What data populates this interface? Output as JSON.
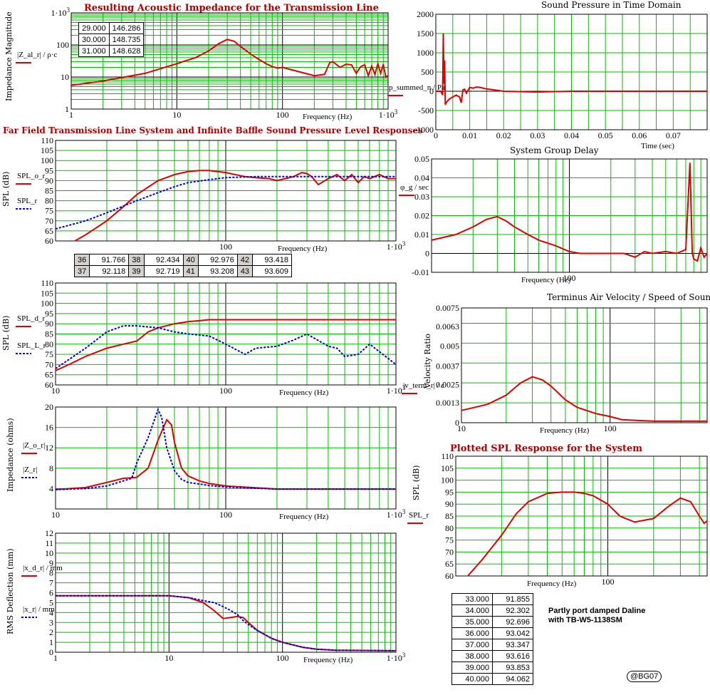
{
  "colors": {
    "grid": "#00c000",
    "red": "#e00000",
    "blue": "#0000e0",
    "title": "#b00000",
    "table_bg": "#d6d3ce"
  },
  "chart_data": [
    {
      "id": "impedance",
      "type": "line",
      "xscale": "log",
      "yscale": "log",
      "title": "Resulting Acoustic Impedance for the Transmission Line",
      "xlabel": "Frequency (Hz)",
      "ylabel": "Impedance Magnitude",
      "xlim": [
        1,
        1000
      ],
      "ylim": [
        1,
        1000
      ],
      "xticks": [
        "1",
        "10",
        "100",
        "1·10³"
      ],
      "yticks": [
        "1",
        "10",
        "100",
        "1·10³"
      ],
      "legend": [
        "|Z_al_r| / ρ·c"
      ],
      "series": [
        {
          "color": "red",
          "x": [
            1,
            2,
            5,
            10,
            15,
            20,
            25,
            30,
            35,
            40,
            50,
            60,
            70,
            80,
            90,
            100,
            120,
            150,
            200,
            250,
            280,
            300,
            350,
            400,
            450,
            500,
            550,
            600,
            650,
            700,
            750,
            800,
            850,
            900,
            950,
            1000
          ],
          "y": [
            5.5,
            7.5,
            13,
            26,
            40,
            65,
            110,
            148,
            130,
            90,
            52,
            35,
            26,
            21,
            19,
            20,
            17,
            14,
            11,
            12,
            28,
            30,
            20,
            25,
            24,
            13,
            21,
            24,
            11,
            22,
            12,
            26,
            13,
            25,
            10,
            11
          ]
        }
      ]
    },
    {
      "id": "time",
      "type": "line",
      "title": "Sound Pressure in Time Domain",
      "xlabel": "Time (sec)",
      "ylabel": "p_summed_n / Pa",
      "xlim": [
        0,
        0.08
      ],
      "ylim": [
        -1000,
        2000
      ],
      "xticks": [
        "0",
        "0.01",
        "0.02",
        "0.03",
        "0.04",
        "0.05",
        "0.06",
        "0.07"
      ],
      "yticks": [
        "-1000",
        "-500",
        "0",
        "500",
        "1000",
        "1500",
        "2000"
      ],
      "series": [
        {
          "color": "red",
          "x": [
            0,
            0.0015,
            0.002,
            0.0022,
            0.0024,
            0.0026,
            0.0028,
            0.003,
            0.0035,
            0.004,
            0.005,
            0.006,
            0.007,
            0.0075,
            0.008,
            0.0085,
            0.009,
            0.01,
            0.011,
            0.012,
            0.013,
            0.015,
            0.02,
            0.03,
            0.04,
            0.06,
            0.08
          ],
          "y": [
            0,
            0,
            -100,
            1500,
            200,
            800,
            -350,
            -300,
            -250,
            -200,
            -150,
            -100,
            -150,
            -300,
            40,
            50,
            -50,
            100,
            80,
            110,
            100,
            60,
            0,
            -20,
            0,
            0,
            0
          ]
        }
      ]
    },
    {
      "id": "farfield",
      "type": "line",
      "xscale": "log",
      "title": "Far Field Transmission Line System and Infinite Baffle Sound Pressure Level Responses",
      "xlabel": "Frequency (Hz)",
      "ylabel": "SPL (dB)",
      "xlim": [
        10,
        1000
      ],
      "ylim": [
        60,
        110
      ],
      "xticks": [
        "100",
        "1·10³"
      ],
      "yticks": [
        "60",
        "65",
        "70",
        "75",
        "80",
        "85",
        "90",
        "95",
        "100",
        "105",
        "110"
      ],
      "legend": [
        "SPL_o_r",
        "SPL_r"
      ],
      "series": [
        {
          "color": "red",
          "dash": false,
          "x": [
            13,
            15,
            20,
            25,
            30,
            40,
            50,
            60,
            70,
            80,
            100,
            130,
            150,
            180,
            200,
            250,
            280,
            300,
            320,
            350,
            400,
            450,
            500,
            550,
            600,
            650,
            700,
            800,
            900,
            1000
          ],
          "y": [
            60,
            63,
            70,
            77,
            83,
            90,
            93,
            94.5,
            95,
            95,
            94,
            92,
            91.5,
            91,
            90,
            92,
            94,
            93.5,
            92,
            88,
            91,
            93,
            90,
            93,
            89,
            92,
            91,
            93,
            91,
            91
          ]
        },
        {
          "color": "blue",
          "dash": true,
          "x": [
            10,
            15,
            20,
            30,
            40,
            50,
            60,
            80,
            100,
            150,
            200,
            300,
            500,
            700,
            1000
          ],
          "y": [
            66,
            70,
            74,
            80,
            84,
            87,
            89,
            90.5,
            91.5,
            92,
            92,
            92,
            92,
            92,
            92
          ]
        }
      ]
    },
    {
      "id": "groupdelay",
      "type": "line",
      "xscale": "log",
      "title": "System Group Delay",
      "xlabel": "Frequency (Hz)",
      "ylabel": "φ_g / sec",
      "xlim": [
        10,
        1000
      ],
      "ylim": [
        -0.01,
        0.05
      ],
      "xticks": [
        "100"
      ],
      "yticks": [
        "-0.01",
        "0",
        "0.01",
        "0.02",
        "0.03",
        "0.04",
        "0.05"
      ],
      "series": [
        {
          "color": "red",
          "x": [
            10,
            15,
            20,
            25,
            30,
            35,
            40,
            50,
            60,
            80,
            100,
            120,
            150,
            200,
            250,
            300,
            350,
            400,
            500,
            600,
            700,
            750,
            780,
            800,
            850,
            900,
            950,
            1000
          ],
          "y": [
            0.007,
            0.01,
            0.014,
            0.018,
            0.0195,
            0.017,
            0.014,
            0.01,
            0.007,
            0.004,
            0.001,
            0.0,
            0.0,
            0.0,
            0.0,
            -0.002,
            0.001,
            0.0,
            0.001,
            0.0,
            0.002,
            0.048,
            0.0,
            -0.003,
            -0.004,
            0.003,
            -0.002,
            0.0
          ]
        }
      ]
    },
    {
      "id": "drivers",
      "type": "line",
      "xscale": "log",
      "xlabel": "Frequency (Hz)",
      "ylabel": "SPL (dB)",
      "xlim": [
        10,
        1000
      ],
      "ylim": [
        60,
        110
      ],
      "xticks": [
        "10",
        "100",
        "1·10³"
      ],
      "yticks": [
        "60",
        "65",
        "70",
        "75",
        "80",
        "85",
        "90",
        "95",
        "100",
        "105",
        "110"
      ],
      "legend": [
        "SPL_d_r",
        "SPL_L_r"
      ],
      "series": [
        {
          "color": "red",
          "dash": false,
          "x": [
            10,
            12,
            15,
            20,
            25,
            30,
            35,
            40,
            50,
            60,
            70,
            80,
            100,
            200,
            500,
            1000
          ],
          "y": [
            67,
            70,
            74,
            78,
            80,
            81.5,
            86,
            88,
            90,
            91,
            91.5,
            92,
            92,
            92,
            92,
            92
          ]
        },
        {
          "color": "blue",
          "dash": true,
          "x": [
            10,
            15,
            20,
            25,
            30,
            40,
            50,
            60,
            80,
            100,
            130,
            150,
            200,
            250,
            300,
            400,
            450,
            500,
            600,
            700,
            900,
            1000
          ],
          "y": [
            68,
            78,
            86,
            89,
            89,
            88,
            86,
            85,
            84,
            80,
            75,
            78,
            79,
            82,
            85,
            79,
            78,
            74,
            75,
            80,
            73,
            70
          ]
        }
      ]
    },
    {
      "id": "velocity",
      "type": "line",
      "xscale": "log",
      "title": "Terminus Air Velocity / Speed of Sound",
      "xlabel": "Frequency (Hz)",
      "ylabel": "Velocity Ratio",
      "xlim": [
        10,
        450
      ],
      "ylim": [
        0,
        0.0075
      ],
      "xticks": [
        "10",
        "100"
      ],
      "yticks": [
        "0",
        "0.0013",
        "0.0025",
        "0.0037",
        "0.005",
        "0.0063",
        "0.0075"
      ],
      "legend": [
        "|v_term_r| / c"
      ],
      "series": [
        {
          "color": "red",
          "x": [
            10,
            15,
            20,
            25,
            30,
            35,
            40,
            50,
            60,
            80,
            100,
            120,
            150,
            200,
            300,
            450
          ],
          "y": [
            0.0008,
            0.0012,
            0.0018,
            0.0026,
            0.003,
            0.0028,
            0.0024,
            0.0015,
            0.001,
            0.0006,
            0.0004,
            0.0002,
            0.00015,
            0.0001,
            0.0001,
            0.0001
          ]
        }
      ]
    },
    {
      "id": "elecimp",
      "type": "line",
      "xscale": "log",
      "xlabel": "Frequency (Hz)",
      "ylabel": "Impedance (ohms)",
      "xlim": [
        10,
        1000
      ],
      "ylim": [
        0,
        20
      ],
      "xticks": [
        "10",
        "100",
        "1·10³"
      ],
      "yticks": [
        "4",
        "8",
        "12",
        "16",
        "20"
      ],
      "legend": [
        "|Z_o_r|",
        "|Z_r|"
      ],
      "series": [
        {
          "color": "red",
          "dash": false,
          "x": [
            10,
            15,
            20,
            25,
            30,
            35,
            40,
            45,
            48,
            50,
            55,
            60,
            70,
            80,
            100,
            200,
            500,
            1000
          ],
          "y": [
            3.8,
            4.2,
            5.2,
            6,
            6.2,
            8,
            13.5,
            17.5,
            16.5,
            13,
            8,
            6.5,
            5.5,
            5,
            4.5,
            3.9,
            3.9,
            3.9
          ]
        },
        {
          "color": "blue",
          "dash": true,
          "x": [
            10,
            15,
            20,
            25,
            28,
            30,
            35,
            40,
            42,
            45,
            50,
            55,
            60,
            70,
            80,
            100,
            200,
            500,
            1000
          ],
          "y": [
            3.8,
            4,
            4.5,
            5.5,
            6,
            9,
            14,
            19.5,
            18,
            12,
            7.5,
            5.8,
            5.2,
            4.9,
            4.6,
            4.3,
            3.9,
            3.9,
            3.9
          ]
        }
      ]
    },
    {
      "id": "plotted",
      "type": "line",
      "xscale": "log",
      "title": "Plotted SPL Response for the System",
      "xlabel": "Frequency (Hz)",
      "ylabel": "SPL (dB)",
      "xlim": [
        10,
        450
      ],
      "ylim": [
        60,
        110
      ],
      "xticks": [
        "100"
      ],
      "yticks": [
        "60",
        "65",
        "70",
        "75",
        "80",
        "85",
        "90",
        "95",
        "100",
        "105",
        "110"
      ],
      "legend": [
        "SPL_r"
      ],
      "series": [
        {
          "color": "red",
          "x": [
            12,
            15,
            20,
            25,
            30,
            40,
            50,
            60,
            70,
            80,
            100,
            120,
            150,
            200,
            250,
            300,
            350,
            400,
            430,
            450
          ],
          "y": [
            60,
            67,
            77,
            86,
            91,
            94.5,
            95,
            95,
            94.5,
            93.5,
            90,
            85,
            82.5,
            84,
            89,
            92.5,
            91,
            85,
            82,
            83
          ]
        }
      ]
    },
    {
      "id": "deflection",
      "type": "line",
      "xscale": "log",
      "xlabel": "Frequency (Hz)",
      "ylabel": "RMS Deflection (mm)",
      "xlim": [
        1,
        1000
      ],
      "ylim": [
        0,
        12
      ],
      "xticks": [
        "1",
        "10",
        "100",
        "1·10³"
      ],
      "yticks": [
        "0",
        "1",
        "2",
        "3",
        "4",
        "5",
        "6",
        "7",
        "8",
        "9",
        "10",
        "11",
        "12"
      ],
      "legend": [
        "|x_d_r| / mm",
        "|x_r| / mm"
      ],
      "series": [
        {
          "color": "red",
          "dash": false,
          "x": [
            1,
            5,
            10,
            15,
            20,
            25,
            30,
            35,
            40,
            45,
            50,
            60,
            80,
            100,
            150,
            200,
            300,
            1000
          ],
          "y": [
            5.7,
            5.7,
            5.7,
            5.5,
            5.0,
            4.2,
            3.4,
            3.5,
            3.6,
            3.5,
            3.0,
            2.2,
            1.4,
            1.0,
            0.5,
            0.3,
            0.2,
            0.15
          ]
        },
        {
          "color": "blue",
          "dash": true,
          "x": [
            1,
            5,
            10,
            15,
            20,
            25,
            30,
            35,
            40,
            45,
            50,
            60,
            80,
            100,
            150,
            200,
            300,
            1000
          ],
          "y": [
            5.7,
            5.7,
            5.7,
            5.5,
            5.2,
            5.0,
            4.6,
            4.2,
            3.8,
            3.2,
            2.8,
            2.2,
            1.4,
            1.0,
            0.5,
            0.3,
            0.2,
            0.15
          ]
        }
      ]
    }
  ],
  "tables": {
    "impedance": [
      [
        "29.000",
        "146.286"
      ],
      [
        "30.000",
        "148.735"
      ],
      [
        "31.000",
        "148.628"
      ]
    ],
    "spl": [
      [
        "36",
        "91.766",
        "38",
        "92.434",
        "40",
        "92.976",
        "42",
        "93.418"
      ],
      [
        "37",
        "92.118",
        "39",
        "92.719",
        "41",
        "93.208",
        "43",
        "93.609"
      ]
    ],
    "final": [
      [
        "33.000",
        "91.855"
      ],
      [
        "34.000",
        "92.302"
      ],
      [
        "35.000",
        "92.696"
      ],
      [
        "36.000",
        "93.042"
      ],
      [
        "37.000",
        "93.347"
      ],
      [
        "38.000",
        "93.616"
      ],
      [
        "39.000",
        "93.853"
      ],
      [
        "40.000",
        "94.062"
      ]
    ]
  },
  "note": {
    "line1": "Partly port damped Daline",
    "line2": "with TB-W5-1138SM"
  },
  "badge": "@BG07"
}
